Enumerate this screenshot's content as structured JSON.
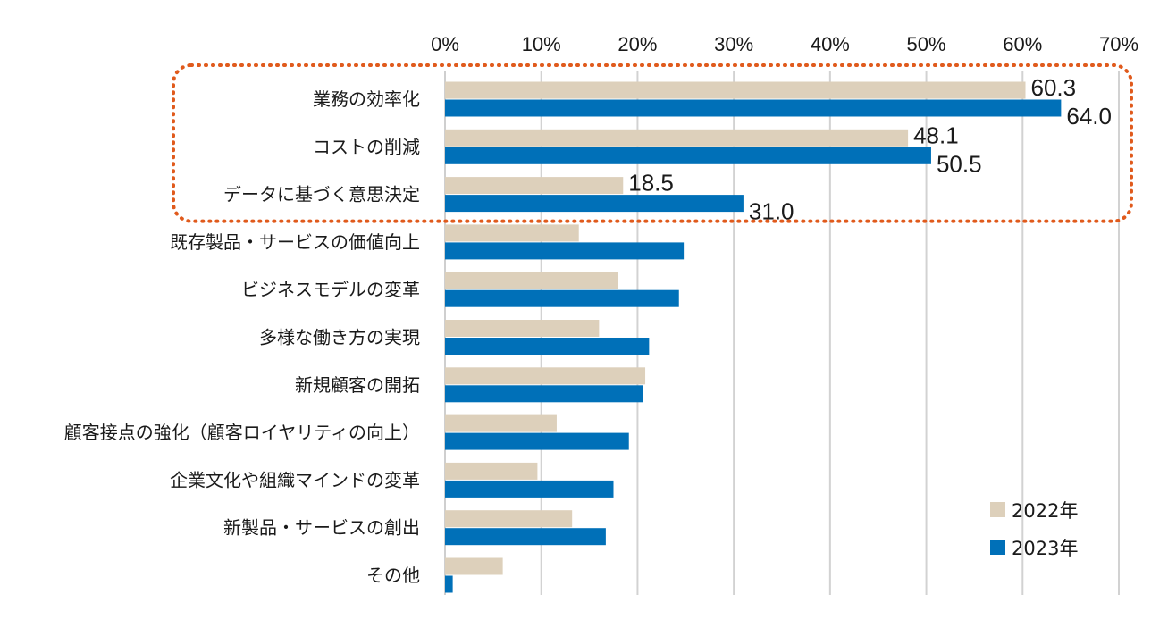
{
  "chart_data": {
    "type": "bar",
    "orientation": "horizontal",
    "title": "",
    "xlabel": "",
    "ylabel": "",
    "xlim": [
      0,
      70
    ],
    "x_ticks": [
      0,
      10,
      20,
      30,
      40,
      50,
      60,
      70
    ],
    "x_tick_labels": [
      "0%",
      "10%",
      "20%",
      "30%",
      "40%",
      "50%",
      "60%",
      "70%"
    ],
    "x_axis_position": "top",
    "grid": true,
    "legend_position": "bottom-right",
    "categories": [
      "業務の効率化",
      "コストの削減",
      "データに基づく意思決定",
      "既存製品・サービスの価値向上",
      "ビジネスモデルの変革",
      "多様な働き方の実現",
      "新規顧客の開拓",
      "顧客接点の強化（顧客ロイヤリティの向上）",
      "企業文化や組織マインドの変革",
      "新製品・サービスの創出",
      "その他"
    ],
    "series": [
      {
        "name": "2022年",
        "color": "#ddd0bb",
        "values": [
          60.3,
          48.1,
          18.5,
          13.9,
          18.0,
          16.0,
          20.8,
          11.6,
          9.6,
          13.2,
          6.0
        ]
      },
      {
        "name": "2023年",
        "color": "#0070b8",
        "values": [
          64.0,
          50.5,
          31.0,
          24.8,
          24.3,
          21.2,
          20.6,
          19.1,
          17.5,
          16.7,
          0.8
        ]
      }
    ],
    "data_labels": [
      {
        "category_index": 0,
        "series_index": 0,
        "text": "60.3"
      },
      {
        "category_index": 0,
        "series_index": 1,
        "text": "64.0"
      },
      {
        "category_index": 1,
        "series_index": 0,
        "text": "48.1"
      },
      {
        "category_index": 1,
        "series_index": 1,
        "text": "50.5"
      },
      {
        "category_index": 2,
        "series_index": 0,
        "text": "18.5"
      },
      {
        "category_index": 2,
        "series_index": 1,
        "text": "31.0"
      }
    ],
    "highlight": {
      "category_indices": [
        0,
        1,
        2
      ],
      "style": "dotted-rounded-box",
      "color": "#e05a1c"
    }
  }
}
